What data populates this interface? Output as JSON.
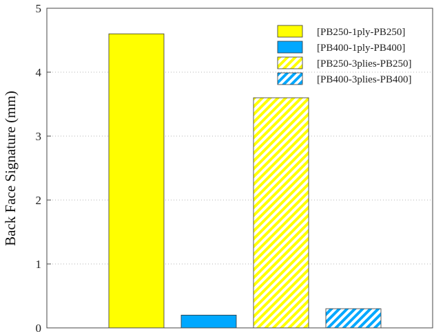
{
  "chart_data": {
    "type": "bar",
    "title": "",
    "xlabel": "",
    "ylabel": "Back Face Signature (mm)",
    "ylim": [
      0,
      5
    ],
    "yticks": [
      0,
      1,
      2,
      3,
      4,
      5
    ],
    "grid": "horizontal dotted",
    "legend_position": "top-right",
    "series": [
      {
        "name": "[PB250-1ply-PB250]",
        "value": 4.6,
        "color": "#ffff00",
        "pattern": "solid"
      },
      {
        "name": "[PB400-1ply-PB400]",
        "value": 0.2,
        "color": "#00a8ff",
        "pattern": "solid"
      },
      {
        "name": "[PB250-3plies-PB250]",
        "value": 3.6,
        "color": "#ffff00",
        "pattern": "hatched"
      },
      {
        "name": "[PB400-3plies-PB400]",
        "value": 0.3,
        "color": "#00a8ff",
        "pattern": "hatched"
      }
    ]
  }
}
